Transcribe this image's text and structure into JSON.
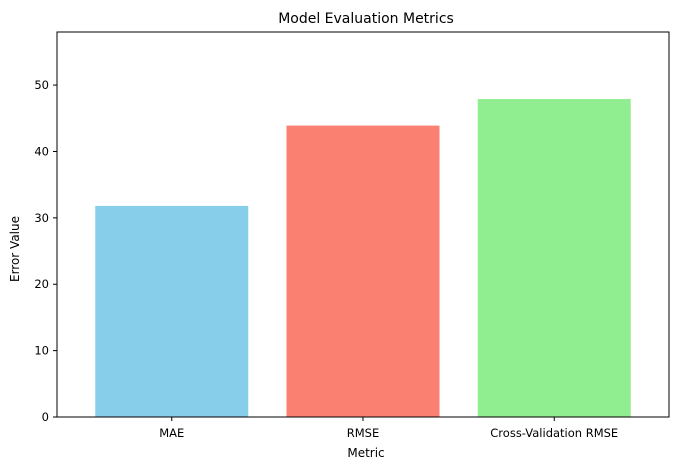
{
  "chart_data": {
    "type": "bar",
    "title": "Model Evaluation Metrics",
    "xlabel": "Metric",
    "ylabel": "Error Value",
    "categories": [
      "MAE",
      "RMSE",
      "Cross-Validation RMSE"
    ],
    "values": [
      31.8,
      43.9,
      47.9
    ],
    "colors": [
      "#87ceeb",
      "#fa8072",
      "#90ee90"
    ],
    "ylim": [
      0,
      58
    ],
    "yticks": [
      "0",
      "10",
      "20",
      "30",
      "40",
      "50"
    ],
    "grid": false,
    "legend": "none"
  }
}
